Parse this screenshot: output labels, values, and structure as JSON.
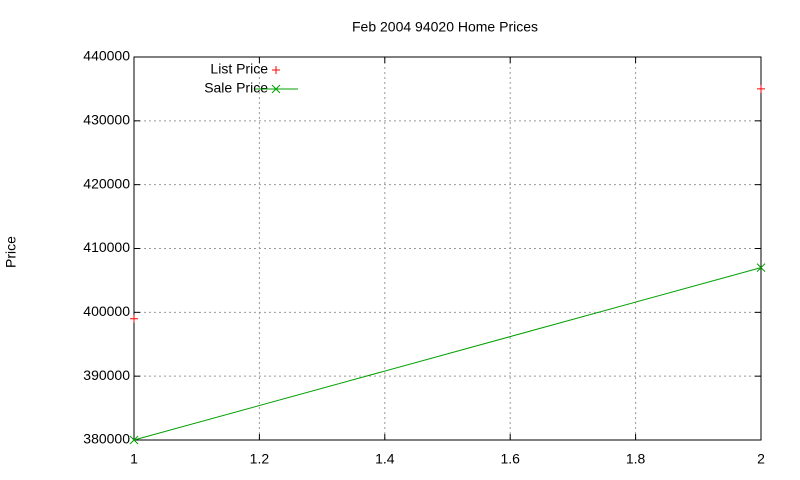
{
  "chart_data": {
    "type": "line",
    "title": "Feb 2004 94020 Home Prices",
    "y_label": "Price",
    "x": [
      1,
      2
    ],
    "series": [
      {
        "name": "List Price",
        "color": "#ff0000",
        "style": "points",
        "marker": "plus",
        "values": [
          399000,
          435000
        ]
      },
      {
        "name": "Sale Price",
        "color": "#00a000",
        "style": "linespoints",
        "marker": "cross",
        "values": [
          380000,
          407000
        ]
      }
    ],
    "xlim": [
      1,
      2
    ],
    "xticks": [
      1,
      1.2,
      1.4,
      1.6,
      1.8,
      2
    ],
    "ylim": [
      380000,
      440000
    ],
    "yticks": [
      380000,
      390000,
      400000,
      410000,
      420000,
      430000,
      440000
    ],
    "grid": true,
    "legend": "top-left"
  }
}
